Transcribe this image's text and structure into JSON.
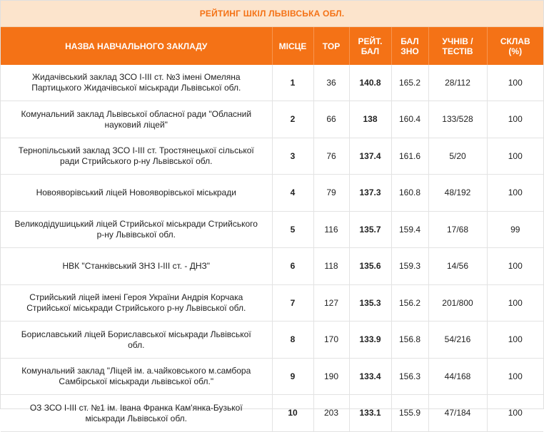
{
  "title": "РЕЙТИНГ ШКІЛ ЛЬВІВСЬКА ОБЛ.",
  "headers": {
    "name": "НАЗВА НАВЧАЛЬНОГО ЗАКЛАДУ",
    "place": "МІСЦЕ",
    "top": "TOP",
    "score_l1": "РЕЙТ.",
    "score_l2": "БАЛ",
    "zno_l1": "БАЛ",
    "zno_l2": "ЗНО",
    "students_l1": "УЧНІВ /",
    "students_l2": "ТЕСТІВ",
    "passed_l1": "СКЛАВ",
    "passed_l2": "(%)"
  },
  "rows": [
    {
      "name_l1": "Жидачівський заклад ЗСО І-ІІІ ст. №3 імені Омеляна",
      "name_l2": "Партицького Жидачівської міськради Львівської обл.",
      "place": "1",
      "top": "36",
      "score": "140.8",
      "zno": "165.2",
      "students": "28/112",
      "passed": "100"
    },
    {
      "name_l1": "Комунальний заклад Львівської обласної ради \"Обласний",
      "name_l2": "науковий ліцей\"",
      "place": "2",
      "top": "66",
      "score": "138",
      "zno": "160.4",
      "students": "133/528",
      "passed": "100"
    },
    {
      "name_l1": "Тернопільський заклад ЗСО І-ІІІ ст. Тростянецької сільської",
      "name_l2": "ради Стрийського р-ну Львівської обл.",
      "place": "3",
      "top": "76",
      "score": "137.4",
      "zno": "161.6",
      "students": "5/20",
      "passed": "100"
    },
    {
      "name_l1": "Новояворівський ліцей Новояворівської міськради",
      "name_l2": "",
      "place": "4",
      "top": "79",
      "score": "137.3",
      "zno": "160.8",
      "students": "48/192",
      "passed": "100"
    },
    {
      "name_l1": "Великодідушицький ліцей Стрийської міськради Стрийського",
      "name_l2": "р-ну Львівської обл.",
      "place": "5",
      "top": "116",
      "score": "135.7",
      "zno": "159.4",
      "students": "17/68",
      "passed": "99"
    },
    {
      "name_l1": "НВК \"Станківський ЗНЗ І-ІІІ ст. - ДНЗ\"",
      "name_l2": "",
      "place": "6",
      "top": "118",
      "score": "135.6",
      "zno": "159.3",
      "students": "14/56",
      "passed": "100"
    },
    {
      "name_l1": "Стрийський ліцей імені Героя України Андрія Корчака",
      "name_l2": "Стрийської міськради Стрийського р-ну Львівської обл.",
      "place": "7",
      "top": "127",
      "score": "135.3",
      "zno": "156.2",
      "students": "201/800",
      "passed": "100"
    },
    {
      "name_l1": "Бориславський ліцей Бориславської міськради Львівської",
      "name_l2": "обл.",
      "place": "8",
      "top": "170",
      "score": "133.9",
      "zno": "156.8",
      "students": "54/216",
      "passed": "100"
    },
    {
      "name_l1": "Комунальний заклад \"Ліцей ім. а.чайковського м.самбора",
      "name_l2": "Самбірської міськради львівської обл.\"",
      "place": "9",
      "top": "190",
      "score": "133.4",
      "zno": "156.3",
      "students": "44/168",
      "passed": "100"
    },
    {
      "name_l1": "ОЗ ЗСО І-ІІІ ст. №1 ім. Івана Франка Кам'янка-Бузької",
      "name_l2": "міськради Львівської обл.",
      "place": "10",
      "top": "203",
      "score": "133.1",
      "zno": "155.9",
      "students": "47/184",
      "passed": "100"
    }
  ]
}
